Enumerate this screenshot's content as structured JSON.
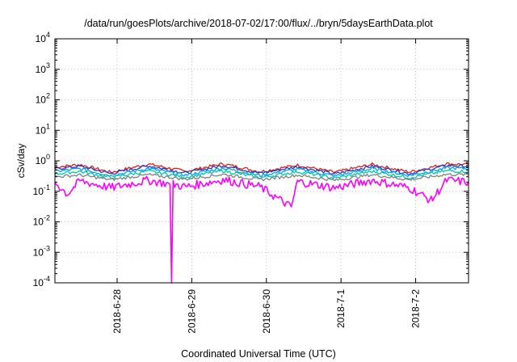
{
  "chart_data": {
    "type": "line",
    "title": "/data/run/goesPlots/archive/2018-07-02/17:00/flux/../bryn/5daysEarthData.plot",
    "xlabel": "Coordinated Universal Time (UTC)",
    "ylabel": "cSv/day",
    "yscale": "log",
    "ylim": [
      0.0001,
      10000
    ],
    "xlim": [
      "2018-06-27 04:00",
      "2018-07-02 17:00"
    ],
    "x_ticks": [
      "2018-6-28",
      "2018-6-29",
      "2018-6-30",
      "2018-7-1",
      "2018-7-2"
    ],
    "y_ticks": [
      {
        "base": "10",
        "exp": "-4"
      },
      {
        "base": "10",
        "exp": "-3"
      },
      {
        "base": "10",
        "exp": "-2"
      },
      {
        "base": "10",
        "exp": "-1"
      },
      {
        "base": "10",
        "exp": "0"
      },
      {
        "base": "10",
        "exp": "1"
      },
      {
        "base": "10",
        "exp": "2"
      },
      {
        "base": "10",
        "exp": "3"
      },
      {
        "base": "10",
        "exp": "4"
      }
    ],
    "grid": true,
    "legend": "none",
    "series": [
      {
        "color": "#e41a1c",
        "x": [
          "2018-06-27 04:00",
          "2018-06-27 12:00",
          "2018-06-27 22:00",
          "2018-06-28 10:00",
          "2018-06-28 22:00",
          "2018-06-29 10:00",
          "2018-06-29 22:00",
          "2018-06-30 10:00",
          "2018-06-30 22:00",
          "2018-07-01 10:00",
          "2018-07-01 22:00",
          "2018-07-02 10:00",
          "2018-07-02 17:00"
        ],
        "values": [
          0.62,
          0.75,
          0.42,
          0.78,
          0.45,
          0.8,
          0.44,
          0.72,
          0.42,
          0.76,
          0.43,
          0.8,
          0.75
        ]
      },
      {
        "color": "#1f3fbf",
        "x": [
          "2018-06-27 04:00",
          "2018-06-27 12:00",
          "2018-06-27 22:00",
          "2018-06-28 10:00",
          "2018-06-28 22:00",
          "2018-06-29 10:00",
          "2018-06-29 22:00",
          "2018-06-30 10:00",
          "2018-06-30 22:00",
          "2018-07-01 10:00",
          "2018-07-01 22:00",
          "2018-07-02 10:00",
          "2018-07-02 17:00"
        ],
        "values": [
          0.55,
          0.66,
          0.38,
          0.68,
          0.4,
          0.7,
          0.39,
          0.64,
          0.37,
          0.67,
          0.38,
          0.7,
          0.66
        ]
      },
      {
        "color": "#00a0ff",
        "x": [
          "2018-06-27 04:00",
          "2018-06-27 12:00",
          "2018-06-27 22:00",
          "2018-06-28 10:00",
          "2018-06-28 22:00",
          "2018-06-29 10:00",
          "2018-06-29 22:00",
          "2018-06-30 10:00",
          "2018-06-30 22:00",
          "2018-07-01 10:00",
          "2018-07-01 22:00",
          "2018-07-02 10:00",
          "2018-07-02 17:00"
        ],
        "values": [
          0.45,
          0.55,
          0.33,
          0.56,
          0.34,
          0.58,
          0.33,
          0.53,
          0.32,
          0.55,
          0.33,
          0.58,
          0.55
        ]
      },
      {
        "color": "#00c8a0",
        "x": [
          "2018-06-27 04:00",
          "2018-06-27 12:00",
          "2018-06-27 22:00",
          "2018-06-28 10:00",
          "2018-06-28 22:00",
          "2018-06-29 10:00",
          "2018-06-29 22:00",
          "2018-06-30 10:00",
          "2018-06-30 22:00",
          "2018-07-01 10:00",
          "2018-07-01 22:00",
          "2018-07-02 10:00",
          "2018-07-02 17:00"
        ],
        "values": [
          0.37,
          0.45,
          0.28,
          0.46,
          0.29,
          0.47,
          0.28,
          0.44,
          0.27,
          0.45,
          0.28,
          0.47,
          0.45
        ]
      },
      {
        "color": "#808080",
        "x": [
          "2018-06-27 04:00",
          "2018-06-27 12:00",
          "2018-06-27 22:00",
          "2018-06-28 10:00",
          "2018-06-28 22:00",
          "2018-06-29 10:00",
          "2018-06-29 22:00",
          "2018-06-30 10:00",
          "2018-06-30 22:00",
          "2018-07-01 10:00",
          "2018-07-01 22:00",
          "2018-07-02 10:00",
          "2018-07-02 17:00"
        ],
        "values": [
          0.3,
          0.34,
          0.24,
          0.35,
          0.25,
          0.36,
          0.24,
          0.34,
          0.23,
          0.35,
          0.24,
          0.36,
          0.35
        ]
      },
      {
        "color": "#ff00ff",
        "x": [
          "2018-06-27 04:00",
          "2018-06-27 08:00",
          "2018-06-27 12:00",
          "2018-06-27 22:00",
          "2018-06-28 10:00",
          "2018-06-28 17:00",
          "2018-06-28 17:30",
          "2018-06-28 18:00",
          "2018-06-28 22:00",
          "2018-06-29 10:00",
          "2018-06-29 22:00",
          "2018-06-30 08:00",
          "2018-06-30 10:00",
          "2018-06-30 22:00",
          "2018-07-01 10:00",
          "2018-07-01 22:00",
          "2018-07-02 05:00",
          "2018-07-02 10:00",
          "2018-07-02 17:00"
        ],
        "values": [
          0.2,
          0.08,
          0.22,
          0.13,
          0.23,
          0.17,
          0.0001,
          0.17,
          0.14,
          0.24,
          0.14,
          0.03,
          0.21,
          0.13,
          0.23,
          0.13,
          0.05,
          0.23,
          0.2
        ]
      }
    ]
  }
}
